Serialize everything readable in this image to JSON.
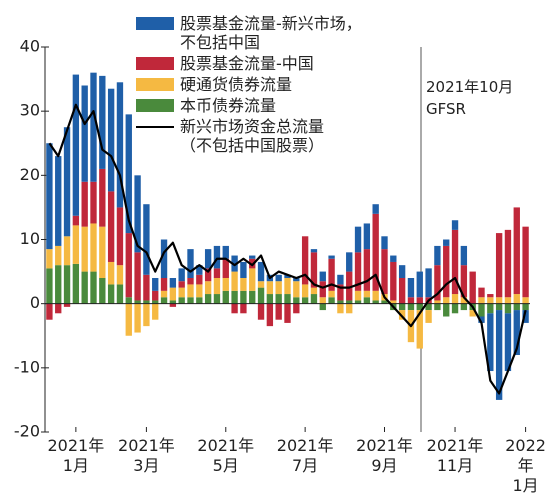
{
  "chart_data": {
    "type": "bar",
    "annotation": "2021年10月\nGFSR",
    "ylim": [
      -20,
      40
    ],
    "yticks": [
      -20,
      -10,
      0,
      10,
      20,
      30,
      40
    ],
    "categories": [
      null,
      null,
      null,
      "2021年\n1月",
      null,
      null,
      null,
      null,
      null,
      null,
      null,
      "2021年\n3月",
      null,
      null,
      null,
      null,
      null,
      null,
      null,
      null,
      "2021年\n5月",
      null,
      null,
      null,
      null,
      null,
      null,
      null,
      null,
      "2021年\n7月",
      null,
      null,
      null,
      null,
      null,
      null,
      null,
      null,
      "2021年\n9月",
      null,
      null,
      null,
      null,
      null,
      null,
      null,
      "2021年\n11月",
      null,
      null,
      null,
      null,
      null,
      null,
      null,
      "2022年\n1月"
    ],
    "series": [
      {
        "name": "股票基金流量-新兴市场，\n不包括中国",
        "type": "bar",
        "color": "#1f5fa8",
        "values": [
          16.5,
          14,
          17,
          22,
          15,
          17,
          14.5,
          16,
          19.5,
          18.5,
          12,
          11,
          2,
          6,
          1.5,
          2,
          4.5,
          1.5,
          3,
          3.5,
          2,
          2.5,
          2.5,
          0.5,
          3,
          1,
          1,
          0.5,
          0.5,
          0,
          0.5,
          1.5,
          0.5,
          1.5,
          3,
          4,
          4,
          1.5,
          2,
          1,
          2,
          3,
          4,
          4.5,
          3,
          1,
          1.5,
          3,
          0,
          -1,
          -9,
          -14,
          -9,
          -7,
          -2
        ]
      },
      {
        "name": "股票基金流量-中国",
        "type": "bar",
        "color": "#c0283a",
        "values": [
          -2.5,
          -1.5,
          -0.5,
          1.5,
          7,
          6.5,
          9,
          11,
          9,
          10,
          7.5,
          4,
          1.5,
          2,
          -0.5,
          1,
          1,
          1.5,
          2,
          1.5,
          3,
          -1.5,
          -1.5,
          1.5,
          -2.5,
          -3.5,
          -2.5,
          -3,
          -1.5,
          7.5,
          5.5,
          2.5,
          5,
          2.5,
          4.5,
          6,
          6.5,
          12,
          7,
          6,
          4,
          1,
          1,
          1,
          5.5,
          8,
          10,
          5,
          5,
          1.5,
          0.5,
          10,
          10.5,
          13.5,
          11
        ]
      },
      {
        "name": "硬通货债券流量",
        "type": "bar",
        "color": "#f5b942",
        "values": [
          3,
          3,
          4.5,
          6,
          7,
          7.5,
          8,
          3.5,
          3,
          -5,
          -4.5,
          -3.5,
          -2.5,
          1,
          2,
          1.5,
          2,
          2,
          2,
          2.5,
          2,
          3,
          2,
          3.5,
          1,
          2,
          2,
          2.5,
          2.5,
          2,
          1,
          1,
          1,
          -1.5,
          -1.5,
          1.5,
          1,
          1.5,
          1,
          0.5,
          -1.5,
          -5,
          -6,
          -2,
          0.5,
          1,
          1.5,
          1,
          -1,
          1,
          1,
          1,
          1,
          1.5,
          1
        ]
      },
      {
        "name": "本币债券流量",
        "type": "bar",
        "color": "#4a8a3c",
        "values": [
          5.5,
          6,
          6,
          6.2,
          5,
          5,
          4,
          3,
          3,
          1,
          0.5,
          0.5,
          0.5,
          1,
          0.5,
          1,
          1,
          1,
          1.5,
          1.5,
          2,
          2,
          2,
          2,
          2.5,
          1.5,
          1.5,
          1.5,
          1,
          1,
          1.5,
          -1,
          1,
          0.5,
          0.5,
          0.5,
          1,
          0.5,
          0.5,
          -1,
          -1,
          -1,
          -1,
          -1,
          -1,
          -2,
          -1.5,
          -1,
          -1,
          -2,
          -1.5,
          -1,
          -1.5,
          -1,
          -1
        ]
      },
      {
        "name": "新兴市场资金总流量\n（不包括中国股票）",
        "type": "line",
        "color": "#000000",
        "values": [
          25,
          23,
          27,
          31,
          28,
          30,
          24,
          23,
          20,
          13,
          9,
          8,
          5,
          8,
          9.5,
          6,
          5,
          6,
          5,
          7,
          7,
          6,
          7,
          6,
          7.5,
          4,
          5,
          4.5,
          4,
          4.5,
          3,
          2.5,
          3,
          2.5,
          2.5,
          3,
          3.5,
          4.5,
          1,
          -0.5,
          -2,
          -3.5,
          -1.5,
          0.5,
          1.5,
          3,
          4,
          1,
          -0.5,
          -3,
          -12,
          -14,
          -10.5,
          -7,
          -1
        ]
      }
    ]
  }
}
